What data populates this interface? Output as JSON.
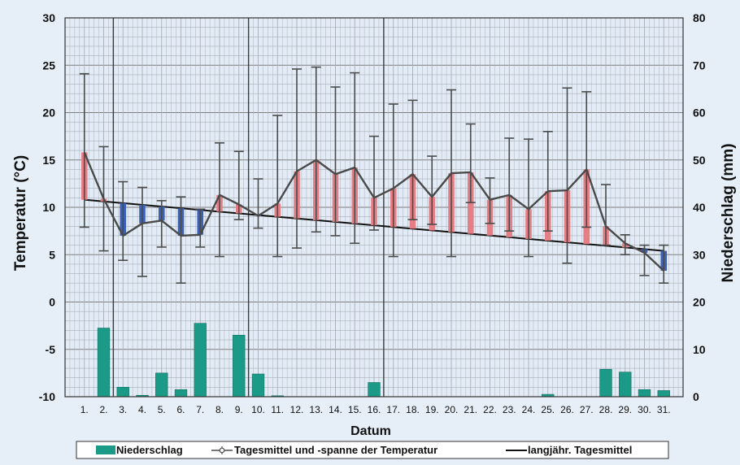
{
  "chart_data": {
    "type": "bar+line",
    "xlabel": "Datum",
    "ylabel_left": "Temperatur (°C)",
    "ylabel_right": "Niederschlag (mm)",
    "ylim_left": [
      -10,
      30
    ],
    "ylim_right": [
      0,
      80
    ],
    "yticks_left": [
      "30",
      "25",
      "20",
      "15",
      "10",
      "5",
      "0",
      "-5",
      "-10"
    ],
    "yticks_right": [
      "80",
      "70",
      "60",
      "50",
      "40",
      "30",
      "20",
      "10",
      "0"
    ],
    "categories": [
      "1.",
      "2.",
      "3.",
      "4.",
      "5.",
      "6.",
      "7.",
      "8.",
      "9.",
      "10.",
      "11.",
      "12.",
      "13.",
      "14.",
      "15.",
      "16.",
      "17.",
      "18.",
      "19.",
      "20.",
      "21.",
      "22.",
      "23.",
      "24.",
      "25.",
      "26.",
      "27.",
      "28.",
      "29.",
      "30.",
      "31."
    ],
    "grid": true,
    "legend_position": "bottom",
    "legend": {
      "precip": "Niederschlag",
      "temp": "Tagesmittel und -spanne der Temperatur",
      "longterm": "langjähr. Tagesmittel"
    },
    "series": {
      "precipitation_mm": [
        0,
        14.5,
        2,
        0.3,
        5,
        1.5,
        15.5,
        0,
        13,
        4.8,
        0.2,
        0,
        0,
        0,
        0,
        3,
        0,
        0,
        0,
        0,
        0,
        0,
        0,
        0,
        0.5,
        0,
        0,
        5.8,
        5.2,
        1.5,
        1.3
      ],
      "temp_mean": [
        15.8,
        10.9,
        7.0,
        8.3,
        8.6,
        7.0,
        7.1,
        11.3,
        10.3,
        9.1,
        10.4,
        13.8,
        15.0,
        13.5,
        14.2,
        11.0,
        12.0,
        13.5,
        11.1,
        13.6,
        13.7,
        10.8,
        11.3,
        9.8,
        11.7,
        11.8,
        14.0,
        8.0,
        6.2,
        5.2,
        3.3
      ],
      "temp_max": [
        24.1,
        16.4,
        12.7,
        12.1,
        10.7,
        11.1,
        9.8,
        16.8,
        15.9,
        13.0,
        19.7,
        24.6,
        24.8,
        22.7,
        24.2,
        17.5,
        20.9,
        21.3,
        15.4,
        22.4,
        18.8,
        13.1,
        17.3,
        17.2,
        18.0,
        22.6,
        22.2,
        12.4,
        7.1,
        6.0,
        6.0
      ],
      "temp_min": [
        7.9,
        5.4,
        4.4,
        2.7,
        5.8,
        2.0,
        5.8,
        4.8,
        8.7,
        7.8,
        4.8,
        5.7,
        7.4,
        7.0,
        6.2,
        7.6,
        4.8,
        8.7,
        8.2,
        4.8,
        10.5,
        8.3,
        7.5,
        4.8,
        7.5,
        4.1,
        7.9,
        6.0,
        5.0,
        2.8,
        2.0
      ],
      "longterm_mean_range": [
        10.8,
        5.4
      ]
    },
    "colors": {
      "background": "#e6eef7",
      "grid": "#9a9a9a",
      "precip": "#1c9a88",
      "warm_bar": "#e57f86",
      "cold_bar": "#3b62b8",
      "temp_line": "#4a4a4a",
      "longterm_line": "#111111"
    }
  }
}
